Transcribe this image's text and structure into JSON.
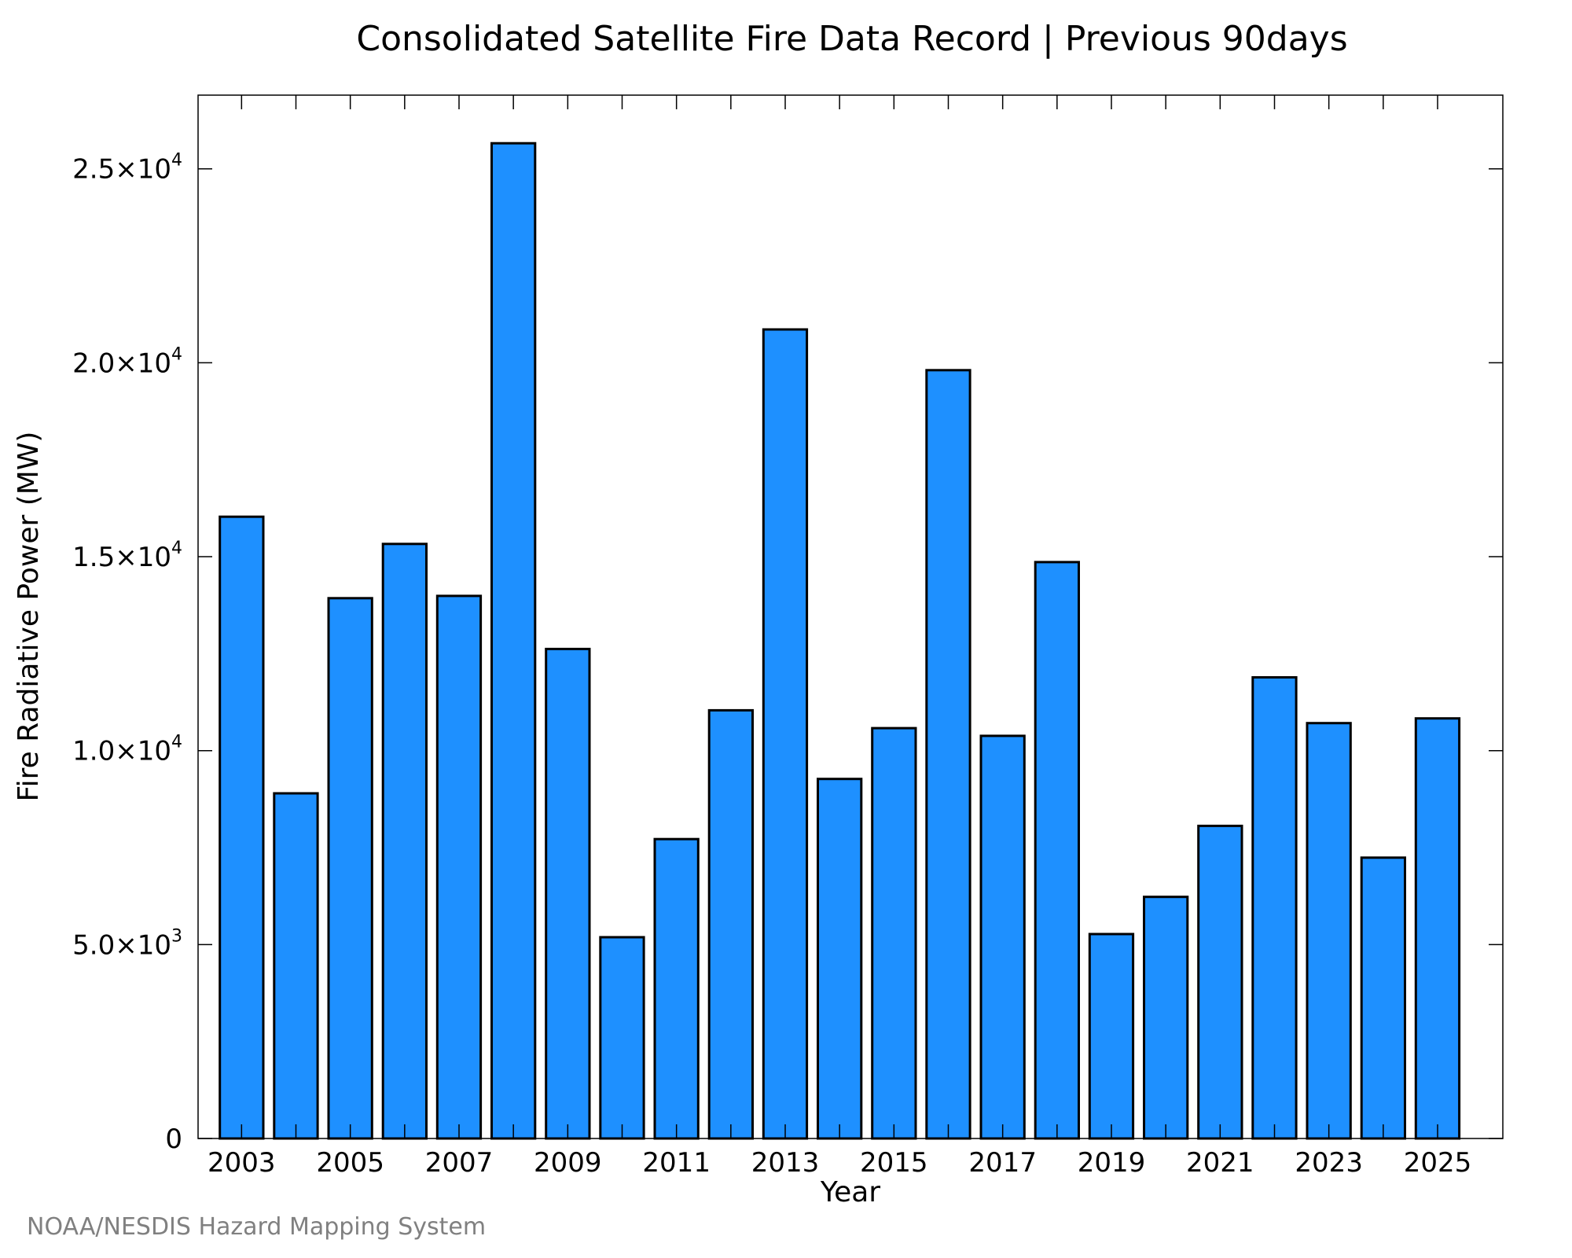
{
  "chart_data": {
    "type": "bar",
    "title": "Consolidated Satellite Fire Data Record | Previous 90days",
    "xlabel": "Year",
    "ylabel": "Fire Radiative Power (MW)",
    "credit": "NOAA/NESDIS Hazard Mapping System",
    "categories": [
      2003,
      2004,
      2005,
      2006,
      2007,
      2008,
      2009,
      2010,
      2011,
      2012,
      2013,
      2014,
      2015,
      2016,
      2017,
      2018,
      2019,
      2020,
      2021,
      2022,
      2023,
      2024,
      2025
    ],
    "values": [
      16030,
      8900,
      13930,
      15330,
      13990,
      25660,
      12620,
      5190,
      7720,
      11040,
      20860,
      9270,
      10580,
      19810,
      10380,
      14860,
      5270,
      6230,
      8060,
      11890,
      10710,
      7240,
      10830
    ],
    "xlim": [
      2002.2,
      2026.2
    ],
    "ylim": [
      0,
      26900
    ],
    "x_ticks": [
      2003,
      2005,
      2007,
      2009,
      2011,
      2013,
      2015,
      2017,
      2019,
      2021,
      2023,
      2025
    ],
    "x_minor_ticks": [
      2004,
      2006,
      2008,
      2010,
      2012,
      2014,
      2016,
      2018,
      2020,
      2022,
      2024
    ],
    "y_ticks": [
      {
        "value": 0,
        "mantissa": "0",
        "exponent": ""
      },
      {
        "value": 5000,
        "mantissa": "5.0×10",
        "exponent": "3"
      },
      {
        "value": 10000,
        "mantissa": "1.0×10",
        "exponent": "4"
      },
      {
        "value": 15000,
        "mantissa": "1.5×10",
        "exponent": "4"
      },
      {
        "value": 20000,
        "mantissa": "2.0×10",
        "exponent": "4"
      },
      {
        "value": 25000,
        "mantissa": "2.5×10",
        "exponent": "4"
      }
    ],
    "grid": false,
    "bar_color": "#1e90ff",
    "edge_color": "#000000"
  }
}
